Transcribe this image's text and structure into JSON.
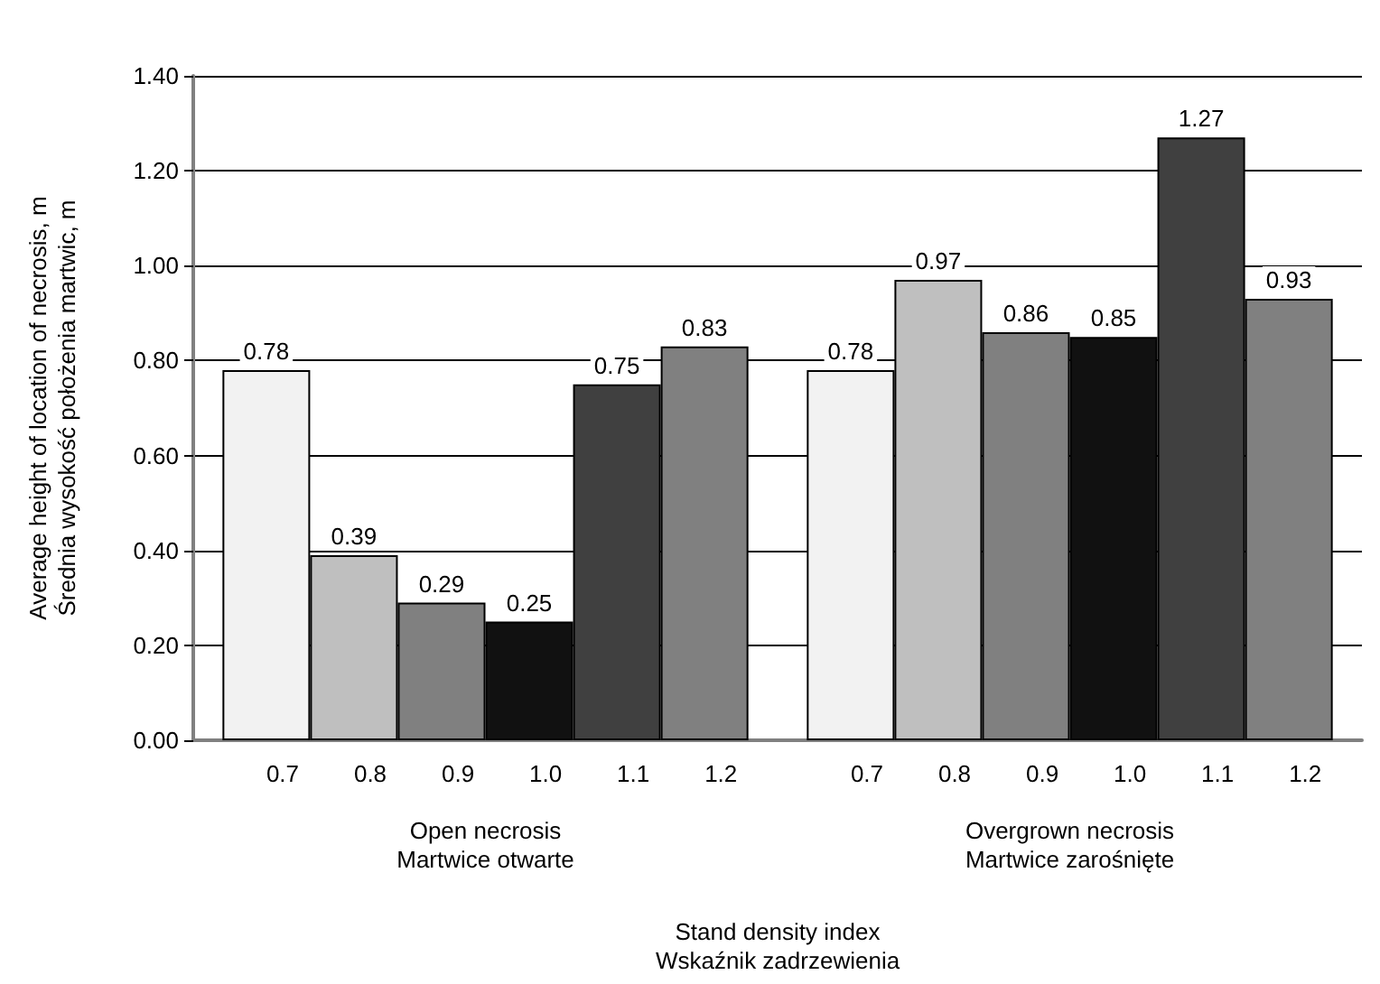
{
  "chart_data": {
    "type": "bar",
    "xlabel": "Stand density index\nWskaźnik zadrzewienia",
    "ylabel": "Average height of location of necrosis, m\nŚrednia wysokość położenia martwic, m",
    "categories": [
      "Open necrosis\nMartwice otwarte",
      "Overgrown necrosis\nMartwice zarośnięte"
    ],
    "series": [
      {
        "name": "0.7",
        "color": "#f2f2f2",
        "values": [
          0.78,
          0.78
        ]
      },
      {
        "name": "0.8",
        "color": "#bfbfbf",
        "values": [
          0.39,
          0.97
        ]
      },
      {
        "name": "0.9",
        "color": "#808080",
        "values": [
          0.29,
          0.86
        ]
      },
      {
        "name": "1.0",
        "color": "#111111",
        "values": [
          0.25,
          0.85
        ]
      },
      {
        "name": "1.1",
        "color": "#404040",
        "values": [
          0.75,
          1.27
        ]
      },
      {
        "name": "1.2",
        "color": "#808080",
        "values": [
          0.83,
          0.93
        ]
      }
    ],
    "ylim": [
      0,
      1.4
    ],
    "yticks": [
      {
        "value": 0,
        "label": "0.00"
      },
      {
        "value": 0.2,
        "label": "0.20"
      },
      {
        "value": 0.4,
        "label": "0.40"
      },
      {
        "value": 0.6,
        "label": "0.60"
      },
      {
        "value": 0.8,
        "label": "0.80"
      },
      {
        "value": 1,
        "label": "1.00"
      },
      {
        "value": 1.2,
        "label": "1.20"
      },
      {
        "value": 1.4,
        "label": "1.40"
      }
    ],
    "data_labels": true,
    "grid": "y",
    "legend": false
  }
}
